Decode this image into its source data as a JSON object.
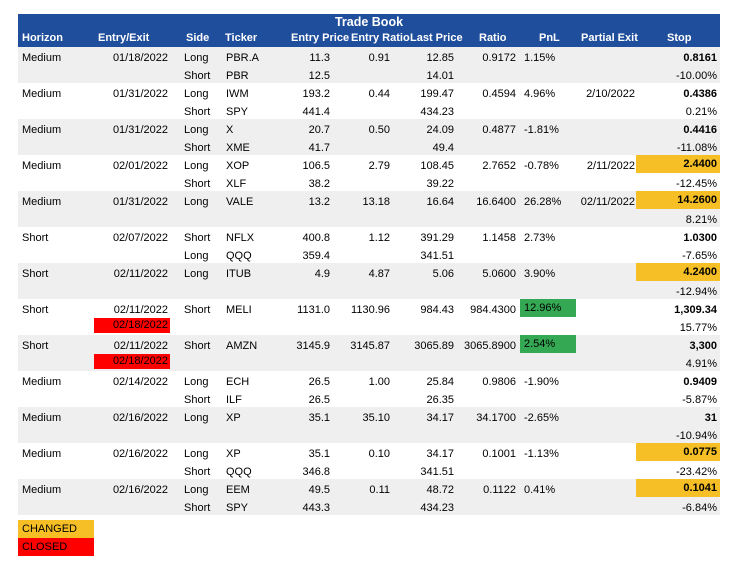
{
  "title": "Trade Book",
  "columns": [
    "Horizon",
    "Entry/Exit",
    "Side",
    "Ticker",
    "Entry Price",
    "Entry Ratio",
    "Last Price",
    "Ratio",
    "PnL",
    "Partial Exit",
    "Stop"
  ],
  "trades": [
    {
      "horizon": "Medium",
      "entry": "01/18/2022",
      "exit": "",
      "legs": [
        {
          "side": "Long",
          "ticker": "PBR.A",
          "entry_price": "11.3",
          "last": "12.85"
        },
        {
          "side": "Short",
          "ticker": "PBR",
          "entry_price": "12.5",
          "last": "14.01"
        }
      ],
      "entry_ratio": "0.91",
      "ratio": "0.9172",
      "pnl": "1.15%",
      "pnl_green": false,
      "partial": "",
      "stop": "0.8161",
      "stop_changed": false,
      "stop_pct": "-10.00%"
    },
    {
      "horizon": "Medium",
      "entry": "01/31/2022",
      "exit": "",
      "legs": [
        {
          "side": "Long",
          "ticker": "IWM",
          "entry_price": "193.2",
          "last": "199.47"
        },
        {
          "side": "Short",
          "ticker": "SPY",
          "entry_price": "441.4",
          "last": "434.23"
        }
      ],
      "entry_ratio": "0.44",
      "ratio": "0.4594",
      "pnl": "4.96%",
      "pnl_green": false,
      "partial": "2/10/2022",
      "stop": "0.4386",
      "stop_changed": false,
      "stop_pct": "0.21%"
    },
    {
      "horizon": "Medium",
      "entry": "01/31/2022",
      "exit": "",
      "legs": [
        {
          "side": "Long",
          "ticker": "X",
          "entry_price": "20.7",
          "last": "24.09"
        },
        {
          "side": "Short",
          "ticker": "XME",
          "entry_price": "41.7",
          "last": "49.4"
        }
      ],
      "entry_ratio": "0.50",
      "ratio": "0.4877",
      "pnl": "-1.81%",
      "pnl_green": false,
      "partial": "",
      "stop": "0.4416",
      "stop_changed": false,
      "stop_pct": "-11.08%"
    },
    {
      "horizon": "Medium",
      "entry": "02/01/2022",
      "exit": "",
      "legs": [
        {
          "side": "Long",
          "ticker": "XOP",
          "entry_price": "106.5",
          "last": "108.45"
        },
        {
          "side": "Short",
          "ticker": "XLF",
          "entry_price": "38.2",
          "last": "39.22"
        }
      ],
      "entry_ratio": "2.79",
      "ratio": "2.7652",
      "pnl": "-0.78%",
      "pnl_green": false,
      "partial": "2/11/2022",
      "stop": "2.4400",
      "stop_changed": true,
      "stop_pct": "-12.45%"
    },
    {
      "horizon": "Medium",
      "entry": "01/31/2022",
      "exit": "",
      "legs": [
        {
          "side": "Long",
          "ticker": "VALE",
          "entry_price": "13.2",
          "last": "16.64"
        }
      ],
      "entry_ratio": "13.18",
      "ratio": "16.6400",
      "pnl": "26.28%",
      "pnl_green": false,
      "partial": "02/11/2022",
      "stop": "14.2600",
      "stop_changed": true,
      "stop_pct": "8.21%"
    },
    {
      "horizon": "Short",
      "entry": "02/07/2022",
      "exit": "",
      "legs": [
        {
          "side": "Short",
          "ticker": "NFLX",
          "entry_price": "400.8",
          "last": "391.29"
        },
        {
          "side": "Long",
          "ticker": "QQQ",
          "entry_price": "359.4",
          "last": "341.51"
        }
      ],
      "entry_ratio": "1.12",
      "ratio": "1.1458",
      "pnl": "2.73%",
      "pnl_green": false,
      "partial": "",
      "stop": "1.0300",
      "stop_changed": false,
      "stop_pct": "-7.65%"
    },
    {
      "horizon": "Short",
      "entry": "02/11/2022",
      "exit": "",
      "legs": [
        {
          "side": "Long",
          "ticker": "ITUB",
          "entry_price": "4.9",
          "last": "5.06"
        }
      ],
      "entry_ratio": "4.87",
      "ratio": "5.0600",
      "pnl": "3.90%",
      "pnl_green": false,
      "partial": "",
      "stop": "4.2400",
      "stop_changed": true,
      "stop_pct": "-12.94%"
    },
    {
      "horizon": "Short",
      "entry": "02/11/2022",
      "exit": "02/18/2022",
      "legs": [
        {
          "side": "Short",
          "ticker": "MELI",
          "entry_price": "1131.0",
          "last": "984.43"
        }
      ],
      "entry_ratio": "1130.96",
      "ratio": "984.4300",
      "pnl": "12.96%",
      "pnl_green": true,
      "partial": "",
      "stop": "1,309.34",
      "stop_changed": false,
      "stop_pct": "15.77%"
    },
    {
      "horizon": "Short",
      "entry": "02/11/2022",
      "exit": "02/18/2022",
      "legs": [
        {
          "side": "Short",
          "ticker": "AMZN",
          "entry_price": "3145.9",
          "last": "3065.89"
        }
      ],
      "entry_ratio": "3145.87",
      "ratio": "3065.8900",
      "pnl": "2.54%",
      "pnl_green": true,
      "partial": "",
      "stop": "3,300",
      "stop_changed": false,
      "stop_pct": "4.91%"
    },
    {
      "horizon": "Medium",
      "entry": "02/14/2022",
      "exit": "",
      "legs": [
        {
          "side": "Long",
          "ticker": "ECH",
          "entry_price": "26.5",
          "last": "25.84"
        },
        {
          "side": "Short",
          "ticker": "ILF",
          "entry_price": "26.5",
          "last": "26.35"
        }
      ],
      "entry_ratio": "1.00",
      "ratio": "0.9806",
      "pnl": "-1.90%",
      "pnl_green": false,
      "partial": "",
      "stop": "0.9409",
      "stop_changed": false,
      "stop_pct": "-5.87%"
    },
    {
      "horizon": "Medium",
      "entry": "02/16/2022",
      "exit": "",
      "legs": [
        {
          "side": "Long",
          "ticker": "XP",
          "entry_price": "35.1",
          "last": "34.17"
        }
      ],
      "entry_ratio": "35.10",
      "ratio": "34.1700",
      "pnl": "-2.65%",
      "pnl_green": false,
      "partial": "",
      "stop": "31",
      "stop_changed": false,
      "stop_pct": "-10.94%"
    },
    {
      "horizon": "Medium",
      "entry": "02/16/2022",
      "exit": "",
      "legs": [
        {
          "side": "Long",
          "ticker": "XP",
          "entry_price": "35.1",
          "last": "34.17"
        },
        {
          "side": "Short",
          "ticker": "QQQ",
          "entry_price": "346.8",
          "last": "341.51"
        }
      ],
      "entry_ratio": "0.10",
      "ratio": "0.1001",
      "pnl": "-1.13%",
      "pnl_green": false,
      "partial": "",
      "stop": "0.0775",
      "stop_changed": true,
      "stop_pct": "-23.42%"
    },
    {
      "horizon": "Medium",
      "entry": "02/16/2022",
      "exit": "",
      "legs": [
        {
          "side": "Long",
          "ticker": "EEM",
          "entry_price": "49.5",
          "last": "48.72"
        },
        {
          "side": "Short",
          "ticker": "SPY",
          "entry_price": "443.3",
          "last": "434.23"
        }
      ],
      "entry_ratio": "0.11",
      "ratio": "0.1122",
      "pnl": "0.41%",
      "pnl_green": false,
      "partial": "",
      "stop": "0.1041",
      "stop_changed": true,
      "stop_pct": "-6.84%"
    }
  ],
  "legend": {
    "changed": "CHANGED",
    "closed": "CLOSED"
  },
  "colors": {
    "header": "#1f4e9c",
    "changed": "#f6bf26",
    "closed": "#ff0000",
    "green": "#34a853",
    "shade": "#efefef"
  }
}
